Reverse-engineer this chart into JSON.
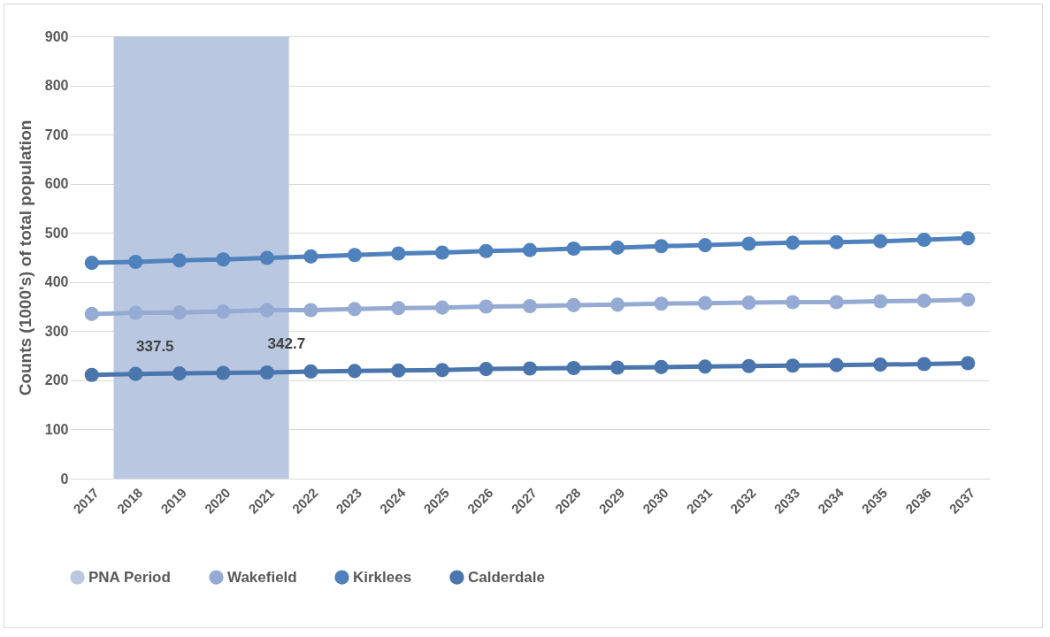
{
  "chart_data": {
    "type": "line",
    "ylabel": "Counts (1000's) of total population",
    "categories": [
      "2017",
      "2018",
      "2019",
      "2020",
      "2021",
      "2022",
      "2023",
      "2024",
      "2025",
      "2026",
      "2027",
      "2028",
      "2029",
      "2030",
      "2031",
      "2032",
      "2033",
      "2034",
      "2035",
      "2036",
      "2037"
    ],
    "series": [
      {
        "name": "Wakefield",
        "color": "#95abd3",
        "values": [
          335,
          337.5,
          338,
          340,
          342.7,
          343,
          345,
          347,
          348,
          350,
          351,
          353,
          354,
          356,
          357,
          358,
          359,
          359,
          361,
          362,
          364
        ],
        "value_labels": [
          null,
          "337.5",
          null,
          null,
          "342.7",
          null,
          null,
          null,
          null,
          null,
          null,
          null,
          null,
          null,
          null,
          null,
          null,
          null,
          null,
          null,
          null
        ]
      },
      {
        "name": "Kirklees",
        "color": "#4f81bd",
        "values": [
          439,
          441,
          444,
          446,
          449,
          452,
          455,
          458,
          460,
          463,
          465,
          468,
          470,
          473,
          475,
          478,
          480,
          481,
          483,
          486,
          489
        ]
      },
      {
        "name": "Calderdale",
        "color": "#4a76ad",
        "values": [
          211,
          213,
          214,
          215,
          216,
          218,
          219,
          220,
          221,
          223,
          224,
          225,
          226,
          227,
          228,
          229,
          230,
          231,
          232,
          233,
          235
        ]
      }
    ],
    "bands": [
      {
        "axis": "x",
        "from": "2018",
        "to": "2021",
        "label": "PNA Period",
        "color": "#b9c7e1"
      }
    ],
    "ylim": [
      0,
      900
    ],
    "yticks": [
      0,
      100,
      200,
      300,
      400,
      500,
      600,
      700,
      800,
      900
    ],
    "grid": "y",
    "legend": "bottom",
    "marker": "circle",
    "line_style": "solid"
  }
}
